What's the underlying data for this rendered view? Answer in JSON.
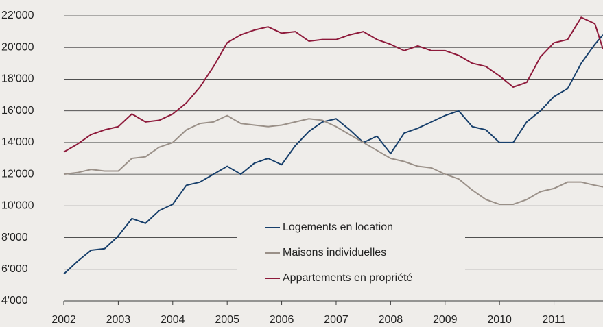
{
  "chart_data": {
    "type": "line",
    "x": [
      2002,
      2002.25,
      2002.5,
      2002.75,
      2003,
      2003.25,
      2003.5,
      2003.75,
      2004,
      2004.25,
      2004.5,
      2004.75,
      2005,
      2005.25,
      2005.5,
      2005.75,
      2006,
      2006.25,
      2006.5,
      2006.75,
      2007,
      2007.25,
      2007.5,
      2007.75,
      2008,
      2008.25,
      2008.5,
      2008.75,
      2009,
      2009.25,
      2009.5,
      2009.75,
      2010,
      2010.25,
      2010.5,
      2010.75,
      2011,
      2011.25,
      2011.5,
      2011.75,
      2011.9
    ],
    "series": [
      {
        "name": "Logements en location",
        "color": "#173f6b",
        "values": [
          5700,
          6500,
          7200,
          7300,
          8100,
          9200,
          8900,
          9700,
          10100,
          11300,
          11500,
          12000,
          12500,
          12000,
          12700,
          13000,
          12600,
          13800,
          14700,
          15300,
          15500,
          14800,
          14000,
          14400,
          13300,
          14600,
          14900,
          15300,
          15700,
          16000,
          15000,
          14800,
          14000,
          14000,
          15300,
          16000,
          16900,
          17400,
          19000,
          20200,
          20800
        ]
      },
      {
        "name": "Maisons individuelles",
        "color": "#9a9088",
        "values": [
          12000,
          12100,
          12300,
          12200,
          12200,
          13000,
          13100,
          13700,
          14000,
          14800,
          15200,
          15300,
          15700,
          15200,
          15100,
          15000,
          15100,
          15300,
          15500,
          15400,
          15000,
          14500,
          14000,
          13500,
          13000,
          12800,
          12500,
          12400,
          12000,
          11700,
          11000,
          10400,
          10100,
          10100,
          10400,
          10900,
          11100,
          11500,
          11500,
          11300,
          11200
        ]
      },
      {
        "name": "Appartements en propriété",
        "color": "#8e1a3b",
        "values": [
          13400,
          13900,
          14500,
          14800,
          15000,
          15800,
          15300,
          15400,
          15800,
          16500,
          17500,
          18800,
          20300,
          20800,
          21100,
          21300,
          20900,
          21000,
          20400,
          20500,
          20500,
          20800,
          21000,
          20500,
          20200,
          19800,
          20100,
          19800,
          19800,
          19500,
          19000,
          18800,
          18200,
          17500,
          17800,
          19400,
          20300,
          20500,
          21900,
          21500,
          19900
        ]
      }
    ],
    "xlim": [
      2002,
      2011.9
    ],
    "xticks": [
      2002,
      2003,
      2004,
      2005,
      2006,
      2007,
      2008,
      2009,
      2010,
      2011
    ],
    "ylim": [
      4000,
      22000
    ],
    "yticks": [
      {
        "value": 4000,
        "label": "4'000"
      },
      {
        "value": 6000,
        "label": "6'000"
      },
      {
        "value": 8000,
        "label": "8'000"
      },
      {
        "value": 10000,
        "label": "10'000"
      },
      {
        "value": 12000,
        "label": "12'000"
      },
      {
        "value": 14000,
        "label": "14'000"
      },
      {
        "value": 16000,
        "label": "16'000"
      },
      {
        "value": 18000,
        "label": "18'000"
      },
      {
        "value": 20000,
        "label": "20'000"
      },
      {
        "value": 22000,
        "label": "22'000"
      }
    ],
    "grid": true
  }
}
